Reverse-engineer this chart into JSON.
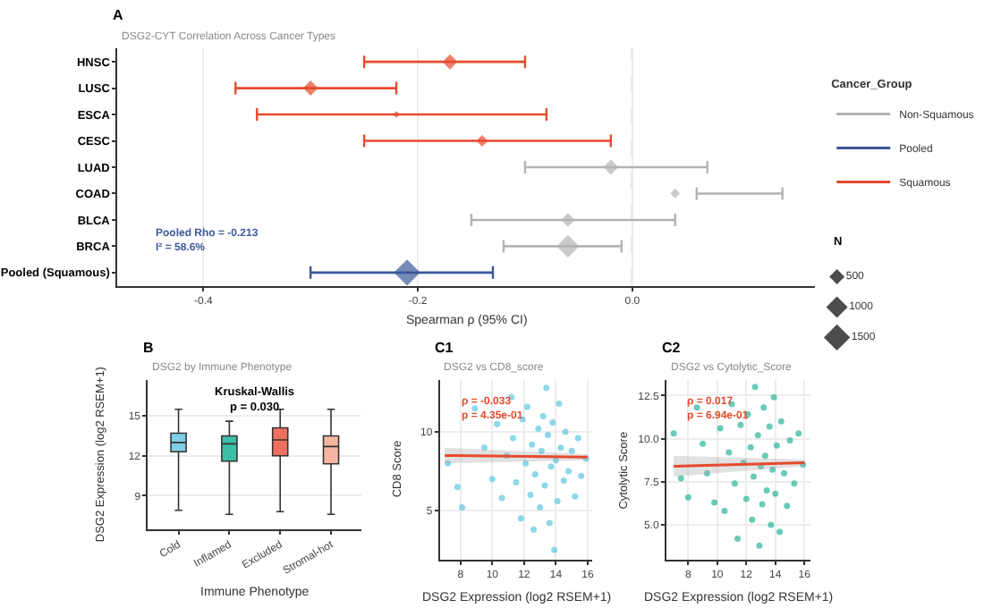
{
  "chart_data": [
    {
      "type": "bubble",
      "title": "A",
      "subtitle": "DSG2-CYT Correlation Across Cancer Types",
      "xlabel": "Spearman ρ (95% CI)",
      "legend_title": "Cancer_Group",
      "orientation": "horizontal",
      "marker": "diamond",
      "categories": [
        "HNSC",
        "LUSC",
        "ESCA",
        "CESC",
        "LUAD",
        "COAD",
        "BLCA",
        "BRCA",
        "Pooled (Squamous)"
      ],
      "series": [
        {
          "name": "Non-Squamous",
          "color": "#b3b3b3",
          "values": [
            null,
            null,
            null,
            null,
            -0.02,
            0.04,
            -0.06,
            -0.06,
            null
          ],
          "errors": [
            null,
            null,
            null,
            null,
            [
              -0.1,
              0.07
            ],
            [
              0.06,
              0.14
            ],
            [
              -0.15,
              0.04
            ],
            [
              -0.12,
              -0.01
            ],
            null
          ],
          "sizes": [
            null,
            null,
            null,
            null,
            500,
            200,
            400,
            1100,
            null
          ]
        },
        {
          "name": "Pooled",
          "color": "#3b5998",
          "values": [
            null,
            null,
            null,
            null,
            null,
            null,
            null,
            null,
            -0.21
          ],
          "errors": [
            null,
            null,
            null,
            null,
            null,
            null,
            null,
            null,
            [
              -0.3,
              -0.13
            ]
          ],
          "sizes": [
            null,
            null,
            null,
            null,
            null,
            null,
            null,
            null,
            1500
          ]
        },
        {
          "name": "Squamous",
          "color": "#e64a2e",
          "values": [
            -0.17,
            -0.3,
            -0.22,
            -0.14,
            null,
            null,
            null,
            null,
            null
          ],
          "errors": [
            [
              -0.25,
              -0.1
            ],
            [
              -0.37,
              -0.22
            ],
            [
              -0.35,
              -0.08
            ],
            [
              -0.25,
              -0.02
            ],
            null,
            null,
            null,
            null,
            null
          ],
          "sizes": [
            500,
            500,
            100,
            300,
            null,
            null,
            null,
            null,
            null
          ]
        }
      ],
      "size_legend": [
        500,
        1000,
        1500
      ],
      "xlim": [
        -0.48,
        0.17
      ],
      "xticks": [
        -0.4,
        -0.2,
        {
          "value": 0,
          "label": "0.0"
        }
      ],
      "ref_lines": [
        {
          "axis": "x",
          "value": 0,
          "color": "#888888",
          "line_style": "dashed"
        }
      ],
      "annotations": [
        "Pooled Rho = -0.213\nI² = 58.6%",
        "N"
      ],
      "grid": "x",
      "legend": "right"
    },
    {
      "type": "box",
      "title": "B",
      "subtitle": "DSG2 by Immune Phenotype",
      "xlabel": "Immune Phenotype",
      "ylabel": "DSG2 Expression (log2 RSEM+1)",
      "categories": [
        "Cold",
        "Inflamed",
        "Excluded",
        "Stromal-hot"
      ],
      "colors": [
        "#7ecfe6",
        "#3cbfa6",
        "#f07060",
        "#f5b5a0"
      ],
      "boxes": [
        {
          "low": 7.9,
          "q1": 12.3,
          "median": 13.0,
          "q3": 13.7,
          "high": 15.5
        },
        {
          "low": 7.6,
          "q1": 11.6,
          "median": 12.9,
          "q3": 13.5,
          "high": 14.6
        },
        {
          "low": 7.8,
          "q1": 12.0,
          "median": 13.2,
          "q3": 14.1,
          "high": 15.5
        },
        {
          "low": 7.6,
          "q1": 11.4,
          "median": 12.7,
          "q3": 13.5,
          "high": 15.5
        }
      ],
      "ylim": [
        6.5,
        17.7
      ],
      "yticks": [
        9,
        12,
        15
      ],
      "annotations": [
        "Kruskal-Wallis\np = 0.030"
      ],
      "grid": "y"
    },
    {
      "type": "scatter",
      "title": "C1",
      "subtitle": "DSG2 vs CD8_score",
      "xlabel": "DSG2 Expression (log2 RSEM+1)",
      "ylabel": "CD8 Score",
      "series": [
        {
          "color": "#5bc8e0",
          "marker": "circle",
          "x": [
            7.2,
            7.8,
            8.1,
            8.9,
            9.5,
            10.0,
            10.3,
            10.6,
            10.9,
            11.2,
            11.3,
            11.5,
            11.8,
            11.9,
            12.1,
            12.2,
            12.4,
            12.5,
            12.6,
            12.7,
            12.9,
            13.0,
            13.1,
            13.2,
            13.3,
            13.4,
            13.5,
            13.6,
            13.7,
            13.8,
            13.9,
            14.0,
            14.1,
            14.2,
            14.3,
            14.5,
            14.6,
            14.8,
            15.0,
            15.2,
            15.4,
            15.6,
            15.9
          ],
          "values": [
            8.0,
            6.5,
            5.2,
            11.5,
            9.0,
            7.0,
            10.5,
            5.8,
            8.5,
            12.2,
            9.6,
            6.8,
            4.5,
            10.8,
            8.0,
            11.6,
            6.0,
            9.2,
            3.8,
            7.3,
            10.2,
            5.2,
            8.8,
            11.0,
            6.6,
            12.8,
            9.8,
            4.2,
            7.8,
            10.6,
            2.5,
            8.2,
            5.6,
            11.8,
            9.0,
            6.9,
            10.0,
            7.5,
            8.8,
            5.9,
            9.6,
            7.2,
            8.3
          ]
        },
        {
          "type": "line",
          "color": "#e64a2e",
          "x": [
            7.0,
            16.0
          ],
          "values": [
            8.5,
            8.4
          ],
          "lower": [
            8.0,
            8.2
          ],
          "upper": [
            9.0,
            8.6
          ]
        }
      ],
      "xlim": [
        6.7,
        16.3
      ],
      "xticks": [
        8,
        10,
        12,
        14,
        16
      ],
      "ylim": [
        1.9,
        13.3
      ],
      "yticks": [
        5,
        10
      ],
      "annotations": [
        "ρ = -0.033\np = 4.35e-01"
      ],
      "grid": true
    },
    {
      "type": "scatter",
      "title": "C2",
      "subtitle": "DSG2 vs Cytolytic_Score",
      "xlabel": "DSG2 Expression (log2 RSEM+1)",
      "ylabel": "Cytolytic Score",
      "series": [
        {
          "color": "#2bb39a",
          "marker": "circle",
          "x": [
            7.0,
            7.5,
            8.0,
            8.6,
            9.0,
            9.3,
            9.8,
            10.2,
            10.5,
            10.8,
            11.0,
            11.2,
            11.4,
            11.6,
            11.8,
            12.0,
            12.1,
            12.3,
            12.4,
            12.5,
            12.6,
            12.8,
            12.9,
            13.0,
            13.1,
            13.2,
            13.3,
            13.4,
            13.6,
            13.7,
            13.8,
            13.9,
            14.0,
            14.1,
            14.3,
            14.4,
            14.6,
            14.8,
            15.0,
            15.3,
            15.6,
            15.9
          ],
          "values": [
            10.3,
            7.7,
            6.6,
            11.8,
            9.7,
            8.0,
            6.3,
            10.6,
            5.8,
            9.2,
            12.0,
            7.4,
            4.2,
            10.8,
            8.6,
            6.5,
            11.4,
            9.5,
            5.3,
            7.8,
            13.0,
            10.2,
            3.8,
            8.4,
            6.2,
            11.8,
            9.0,
            7.0,
            10.7,
            5.0,
            8.2,
            12.4,
            6.8,
            9.6,
            4.6,
            11.0,
            8.0,
            6.1,
            9.9,
            7.4,
            10.3,
            8.5
          ]
        },
        {
          "type": "line",
          "color": "#e64a2e",
          "x": [
            7.0,
            16.0
          ],
          "values": [
            8.4,
            8.6
          ],
          "lower": [
            7.8,
            8.4
          ],
          "upper": [
            9.0,
            8.8
          ]
        }
      ],
      "xlim": [
        6.5,
        16.4
      ],
      "xticks": [
        8,
        10,
        12,
        14,
        16
      ],
      "ylim": [
        3.0,
        13.4
      ],
      "yticks": [
        {
          "value": 5,
          "label": "5.0"
        },
        {
          "value": 7.5,
          "label": "7.5"
        },
        {
          "value": 10,
          "label": "10.0"
        },
        {
          "value": 12.5,
          "label": "12.5"
        }
      ],
      "annotations": [
        "ρ = 0.017\np = 6.94e-01"
      ],
      "grid": true
    }
  ]
}
